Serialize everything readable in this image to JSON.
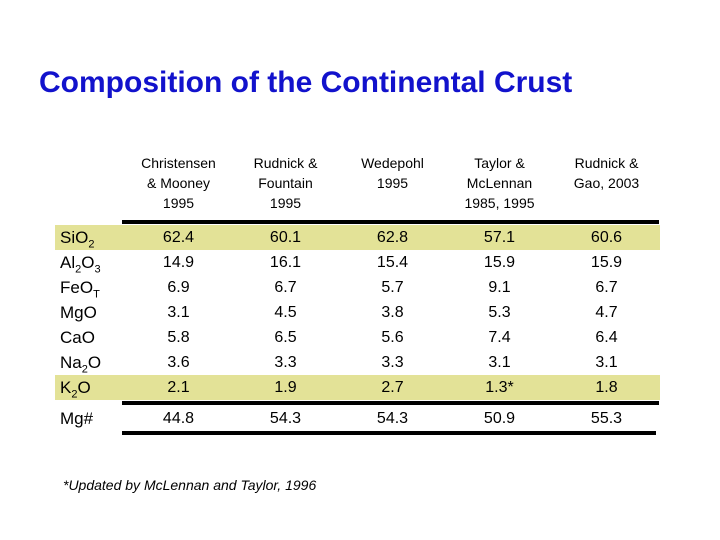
{
  "slide": {
    "title": "Composition of the Continental Crust",
    "footnote": "*Updated by McLennan and Taylor, 1996"
  },
  "colors": {
    "title_blue": "#1212CC",
    "row_highlight": "#E3E297",
    "rule_black": "#000000"
  },
  "table": {
    "columns": [
      {
        "lines": [
          "Christensen",
          "& Mooney",
          "1995"
        ]
      },
      {
        "lines": [
          "Rudnick &",
          "Fountain",
          "1995"
        ]
      },
      {
        "lines": [
          "Wedepohl",
          "1995"
        ]
      },
      {
        "lines": [
          "Taylor &",
          "McLennan",
          "1985, 1995"
        ]
      },
      {
        "lines": [
          "Rudnick &",
          "Gao, 2003"
        ]
      }
    ],
    "rows": [
      {
        "label": [
          "SiO",
          "2"
        ],
        "values": [
          "62.4",
          "60.1",
          "62.8",
          "57.1",
          "60.6"
        ],
        "highlight": true
      },
      {
        "label": [
          "Al",
          "2",
          "O",
          "3"
        ],
        "values": [
          "14.9",
          "16.1",
          "15.4",
          "15.9",
          "15.9"
        ],
        "highlight": false
      },
      {
        "label": [
          "FeO",
          "T"
        ],
        "values": [
          "6.9",
          "6.7",
          "5.7",
          "9.1",
          "6.7"
        ],
        "highlight": false
      },
      {
        "label": [
          "MgO"
        ],
        "values": [
          "3.1",
          "4.5",
          "3.8",
          "5.3",
          "4.7"
        ],
        "highlight": false
      },
      {
        "label": [
          "CaO"
        ],
        "values": [
          "5.8",
          "6.5",
          "5.6",
          "7.4",
          "6.4"
        ],
        "highlight": false
      },
      {
        "label": [
          "Na",
          "2",
          "O"
        ],
        "values": [
          "3.6",
          "3.3",
          "3.3",
          "3.1",
          "3.1"
        ],
        "highlight": false
      },
      {
        "label": [
          "K",
          "2",
          "O"
        ],
        "values": [
          "2.1",
          "1.9",
          "2.7",
          "1.3*",
          "1.8"
        ],
        "highlight": true
      }
    ],
    "footer_row": {
      "label": [
        "Mg#"
      ],
      "values": [
        "44.8",
        "54.3",
        "54.3",
        "50.9",
        "55.3"
      ]
    }
  },
  "chart_data": {
    "type": "table",
    "title": "Composition of the Continental Crust",
    "columns": [
      "Christensen & Mooney 1995",
      "Rudnick & Fountain 1995",
      "Wedepohl 1995",
      "Taylor & McLennan 1985, 1995",
      "Rudnick & Gao, 2003"
    ],
    "row_labels": [
      "SiO2",
      "Al2O3",
      "FeOT",
      "MgO",
      "CaO",
      "Na2O",
      "K2O",
      "Mg#"
    ],
    "values": [
      [
        62.4,
        60.1,
        62.8,
        57.1,
        60.6
      ],
      [
        14.9,
        16.1,
        15.4,
        15.9,
        15.9
      ],
      [
        6.9,
        6.7,
        5.7,
        9.1,
        6.7
      ],
      [
        3.1,
        4.5,
        3.8,
        5.3,
        4.7
      ],
      [
        5.8,
        6.5,
        5.6,
        7.4,
        6.4
      ],
      [
        3.6,
        3.3,
        3.3,
        3.1,
        3.1
      ],
      [
        2.1,
        1.9,
        2.7,
        1.3,
        1.8
      ],
      [
        44.8,
        54.3,
        54.3,
        50.9,
        55.3
      ]
    ],
    "highlighted_rows": [
      "SiO2",
      "K2O"
    ],
    "annotations": [
      "1.3 value marked with * — *Updated by McLennan and Taylor, 1996"
    ]
  }
}
